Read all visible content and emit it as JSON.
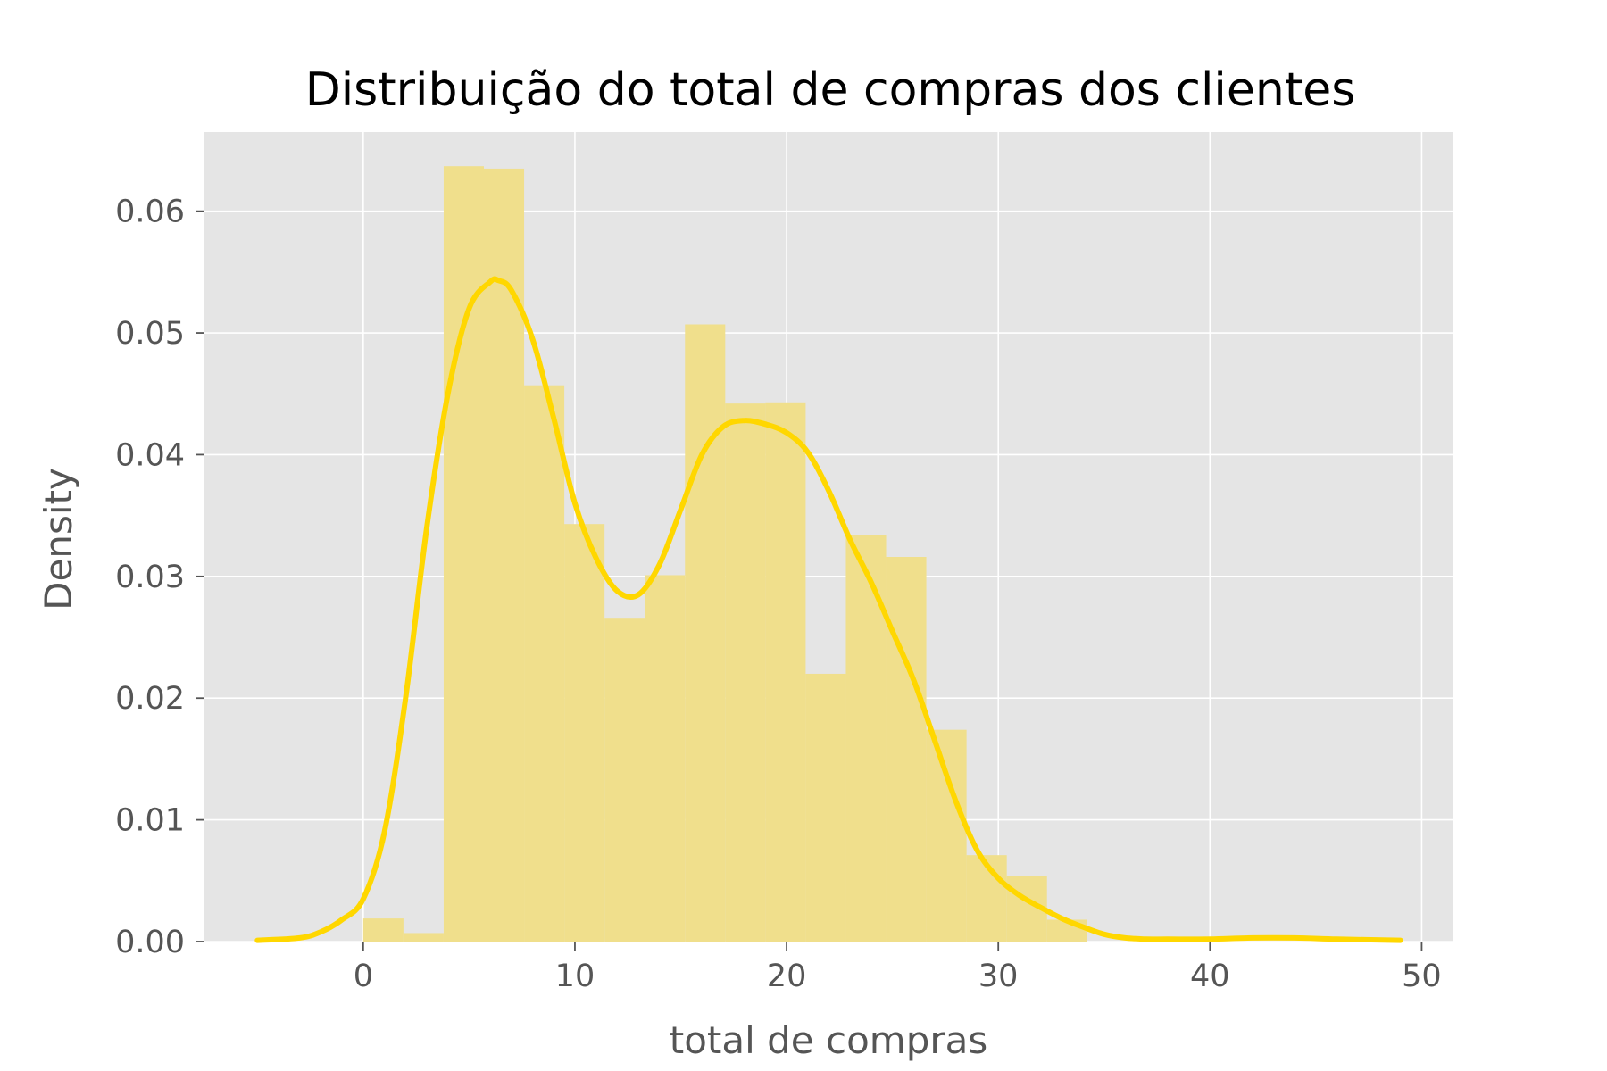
{
  "chart_data": {
    "type": "bar",
    "title": "Distribuição do total de compras dos clientes",
    "xlabel": "total de compras",
    "ylabel": "Density",
    "xlim": [
      -7.5,
      51.5
    ],
    "ylim": [
      0,
      0.0665
    ],
    "x_ticks": [
      0,
      10,
      20,
      30,
      40,
      50
    ],
    "x_tick_labels": [
      "0",
      "10",
      "20",
      "30",
      "40",
      "50"
    ],
    "y_ticks": [
      0,
      0.01,
      0.02,
      0.03,
      0.04,
      0.05,
      0.06
    ],
    "y_tick_labels": [
      "0.00",
      "0.01",
      "0.02",
      "0.03",
      "0.04",
      "0.05",
      "0.06"
    ],
    "grid": true,
    "legend": "none",
    "colors": {
      "plot_background": "#e5e5e5",
      "grid": "#ffffff",
      "histogram_bars": "#f0df8c",
      "kde_line": "#ffd700"
    },
    "series": [
      {
        "kind": "histogram",
        "bin_edges": [
          0,
          1.9,
          3.8,
          5.7,
          7.6,
          9.5,
          11.4,
          13.3,
          15.2,
          17.1,
          19.0,
          20.9,
          22.8,
          24.7,
          26.6,
          28.5,
          30.4,
          32.3,
          34.2
        ],
        "values": [
          0.0019,
          0.0007,
          0.0637,
          0.0635,
          0.0457,
          0.0343,
          0.0266,
          0.0301,
          0.0507,
          0.0442,
          0.0443,
          0.022,
          0.0334,
          0.0316,
          0.0174,
          0.0071,
          0.0054,
          0.0018
        ]
      },
      {
        "kind": "kde",
        "x": [
          -5,
          -3,
          -2,
          -1,
          0,
          1,
          2,
          3,
          4,
          5,
          6,
          6.4,
          7,
          8,
          9,
          10,
          11,
          12,
          13,
          14,
          15,
          16,
          17,
          18,
          19,
          20,
          21,
          22,
          23,
          24,
          25,
          26,
          27,
          28,
          29,
          30,
          31,
          32,
          33,
          34,
          35,
          36,
          37,
          38,
          40,
          42,
          44,
          46,
          49
        ],
        "y": [
          0.0001,
          0.0003,
          0.0008,
          0.0018,
          0.0035,
          0.009,
          0.02,
          0.034,
          0.045,
          0.052,
          0.0542,
          0.0543,
          0.0535,
          0.0495,
          0.043,
          0.036,
          0.0315,
          0.0288,
          0.0285,
          0.031,
          0.0355,
          0.04,
          0.0423,
          0.0428,
          0.0425,
          0.0418,
          0.0402,
          0.037,
          0.033,
          0.0295,
          0.0255,
          0.0215,
          0.0165,
          0.0115,
          0.0075,
          0.0052,
          0.0038,
          0.0028,
          0.0019,
          0.0012,
          0.0006,
          0.0003,
          0.0002,
          0.0002,
          0.0002,
          0.0003,
          0.0003,
          0.0002,
          0.0001
        ]
      }
    ]
  }
}
